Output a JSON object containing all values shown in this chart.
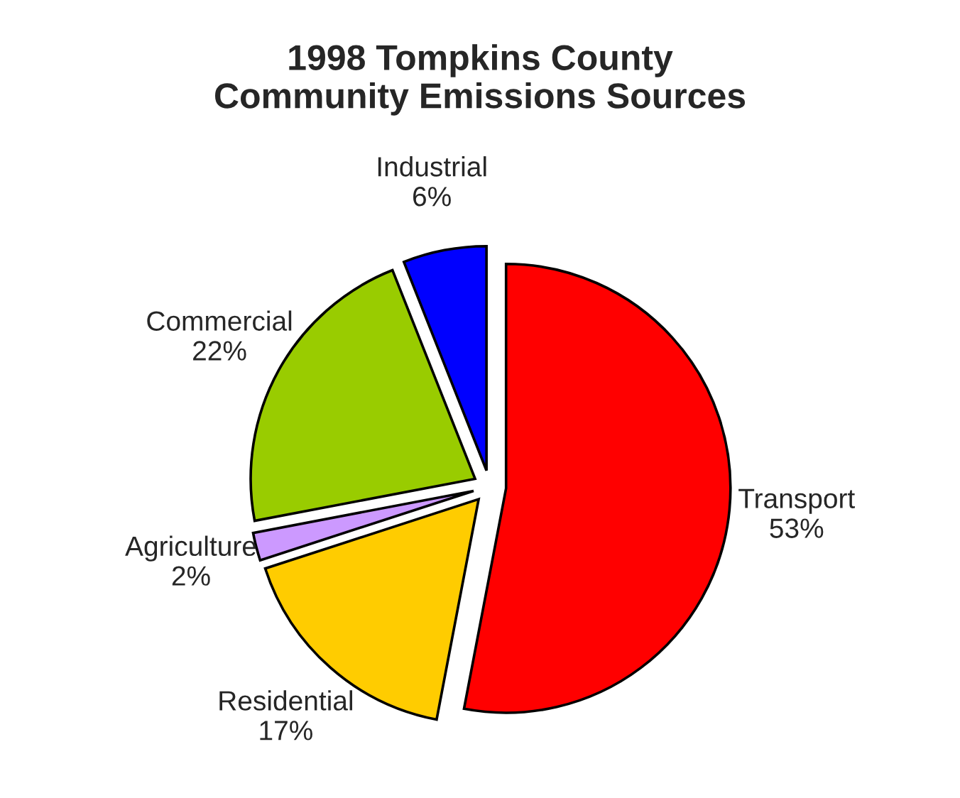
{
  "chart_data": {
    "type": "pie",
    "title": "1998 Tompkins County Community Emissions Sources",
    "categories": [
      "Transport",
      "Residential",
      "Agriculture",
      "Commercial",
      "Industrial"
    ],
    "values": [
      53,
      17,
      2,
      22,
      6
    ],
    "value_labels": [
      "53%",
      "17%",
      "2%",
      "22%",
      "6%"
    ],
    "colors": [
      "#ff0000",
      "#ffcc00",
      "#cc99ff",
      "#99cc00",
      "#0000ff"
    ],
    "legend": false
  }
}
